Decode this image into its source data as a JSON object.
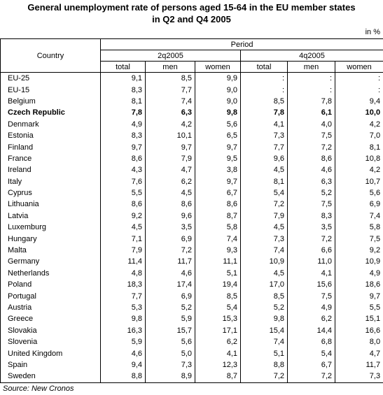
{
  "title": [
    "General unemployment rate of persons aged 15-64 in the EU member states",
    "in Q2 and Q4 2005"
  ],
  "unit": "in %",
  "header": {
    "country": "Country",
    "period": "Period",
    "periods": [
      "2q2005",
      "4q2005"
    ],
    "subcolumns": [
      "total",
      "men",
      "women",
      "total",
      "men",
      "women"
    ]
  },
  "table": {
    "rows": [
      [
        "EU-25",
        "9,1",
        "8,5",
        "9,9",
        ":",
        ":",
        ":"
      ],
      [
        "EU-15",
        "8,3",
        "7,7",
        "9,0",
        ":",
        ":",
        ":"
      ],
      [
        "Belgium",
        "8,1",
        "7,4",
        "9,0",
        "8,5",
        "7,8",
        "9,4"
      ],
      [
        "Czech Republic",
        "7,8",
        "6,3",
        "9,8",
        "7,8",
        "6,1",
        "10,0"
      ],
      [
        "Denmark",
        "4,9",
        "4,2",
        "5,6",
        "4,1",
        "4,0",
        "4,2"
      ],
      [
        "Estonia",
        "8,3",
        "10,1",
        "6,5",
        "7,3",
        "7,5",
        "7,0"
      ],
      [
        "Finland",
        "9,7",
        "9,7",
        "9,7",
        "7,7",
        "7,2",
        "8,1"
      ],
      [
        "France",
        "8,6",
        "7,9",
        "9,5",
        "9,6",
        "8,6",
        "10,8"
      ],
      [
        "Ireland",
        "4,3",
        "4,7",
        "3,8",
        "4,5",
        "4,6",
        "4,2"
      ],
      [
        "Italy",
        "7,6",
        "6,2",
        "9,7",
        "8,1",
        "6,3",
        "10,7"
      ],
      [
        "Cyprus",
        "5,5",
        "4,5",
        "6,7",
        "5,4",
        "5,2",
        "5,6"
      ],
      [
        "Lithuania",
        "8,6",
        "8,6",
        "8,6",
        "7,2",
        "7,5",
        "6,9"
      ],
      [
        "Latvia",
        "9,2",
        "9,6",
        "8,7",
        "7,9",
        "8,3",
        "7,4"
      ],
      [
        "Luxemburg",
        "4,5",
        "3,5",
        "5,8",
        "4,5",
        "3,5",
        "5,8"
      ],
      [
        "Hungary",
        "7,1",
        "6,9",
        "7,4",
        "7,3",
        "7,2",
        "7,5"
      ],
      [
        "Malta",
        "7,9",
        "7,2",
        "9,3",
        "7,4",
        "6,6",
        "9,2"
      ],
      [
        "Germany",
        "11,4",
        "11,7",
        "11,1",
        "10,9",
        "11,0",
        "10,9"
      ],
      [
        "Netherlands",
        "4,8",
        "4,6",
        "5,1",
        "4,5",
        "4,1",
        "4,9"
      ],
      [
        "Poland",
        "18,3",
        "17,4",
        "19,4",
        "17,0",
        "15,6",
        "18,6"
      ],
      [
        "Portugal",
        "7,7",
        "6,9",
        "8,5",
        "8,5",
        "7,5",
        "9,7"
      ],
      [
        "Austria",
        "5,3",
        "5,2",
        "5,4",
        "5,2",
        "4,9",
        "5,5"
      ],
      [
        "Greece",
        "9,8",
        "5,9",
        "15,3",
        "9,8",
        "6,2",
        "15,1"
      ],
      [
        "Slovakia",
        "16,3",
        "15,7",
        "17,1",
        "15,4",
        "14,4",
        "16,6"
      ],
      [
        "Slovenia",
        "5,9",
        "5,6",
        "6,2",
        "7,4",
        "6,8",
        "8,0"
      ],
      [
        "United Kingdom",
        "4,6",
        "5,0",
        "4,1",
        "5,1",
        "5,4",
        "4,7"
      ],
      [
        "Spain",
        "9,4",
        "7,3",
        "12,3",
        "8,8",
        "6,7",
        "11,7"
      ],
      [
        "Sweden",
        "8,8",
        "8,9",
        "8,7",
        "7,2",
        "7,2",
        "7,3"
      ]
    ]
  },
  "source": "Source: New Cronos"
}
